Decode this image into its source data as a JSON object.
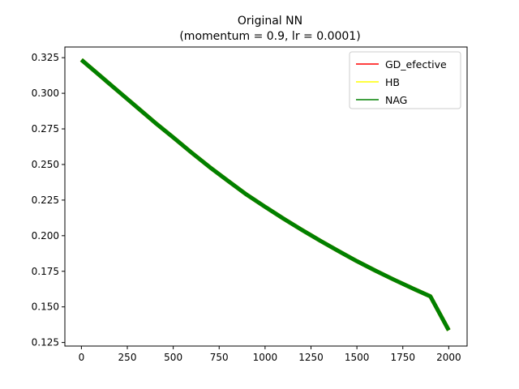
{
  "chart_data": {
    "type": "line",
    "title": "Original NN",
    "subtitle": "(momentum = 0.9, lr = 0.0001)",
    "xlabel": "",
    "ylabel": "",
    "xlim": [
      -90,
      2100
    ],
    "ylim": [
      0.1225,
      0.3325
    ],
    "xticks": [
      0,
      250,
      500,
      750,
      1000,
      1250,
      1500,
      1750,
      2000
    ],
    "yticks": [
      0.125,
      0.15,
      0.175,
      0.2,
      0.225,
      0.25,
      0.275,
      0.3,
      0.325
    ],
    "ytick_labels": [
      "0.125",
      "0.150",
      "0.175",
      "0.200",
      "0.225",
      "0.250",
      "0.275",
      "0.300",
      "0.325"
    ],
    "legend_position": "top-right",
    "series": [
      {
        "name": "GD_efective",
        "color": "#ff0000",
        "x": [
          0,
          100,
          200,
          300,
          400,
          500,
          600,
          700,
          800,
          900,
          1000,
          1100,
          1200,
          1300,
          1400,
          1500,
          1600,
          1700,
          1800,
          1900,
          2000
        ],
        "y": [
          0.3235,
          0.3125,
          0.3015,
          0.2905,
          0.2795,
          0.269,
          0.2583,
          0.248,
          0.2383,
          0.2288,
          0.2203,
          0.212,
          0.2041,
          0.1965,
          0.1892,
          0.1821,
          0.1755,
          0.1692,
          0.1632,
          0.1574,
          0.1336
        ]
      },
      {
        "name": "HB",
        "color": "#ffff00",
        "x": [
          0,
          100,
          200,
          300,
          400,
          500,
          600,
          700,
          800,
          900,
          1000,
          1100,
          1200,
          1300,
          1400,
          1500,
          1600,
          1700,
          1800,
          1900,
          2000
        ],
        "y": [
          0.3235,
          0.3125,
          0.3015,
          0.2905,
          0.2795,
          0.269,
          0.2583,
          0.248,
          0.2383,
          0.2288,
          0.2203,
          0.212,
          0.2041,
          0.1965,
          0.1892,
          0.1821,
          0.1755,
          0.1692,
          0.1632,
          0.1574,
          0.1336
        ]
      },
      {
        "name": "NAG",
        "color": "#008000",
        "x": [
          0,
          100,
          200,
          300,
          400,
          500,
          600,
          700,
          800,
          900,
          1000,
          1100,
          1200,
          1300,
          1400,
          1500,
          1600,
          1700,
          1800,
          1900,
          2000
        ],
        "y": [
          0.3235,
          0.3125,
          0.3015,
          0.2905,
          0.2795,
          0.269,
          0.2583,
          0.248,
          0.2383,
          0.2288,
          0.2203,
          0.212,
          0.2041,
          0.1965,
          0.1892,
          0.1821,
          0.1755,
          0.1692,
          0.1632,
          0.1574,
          0.1336
        ]
      }
    ]
  }
}
